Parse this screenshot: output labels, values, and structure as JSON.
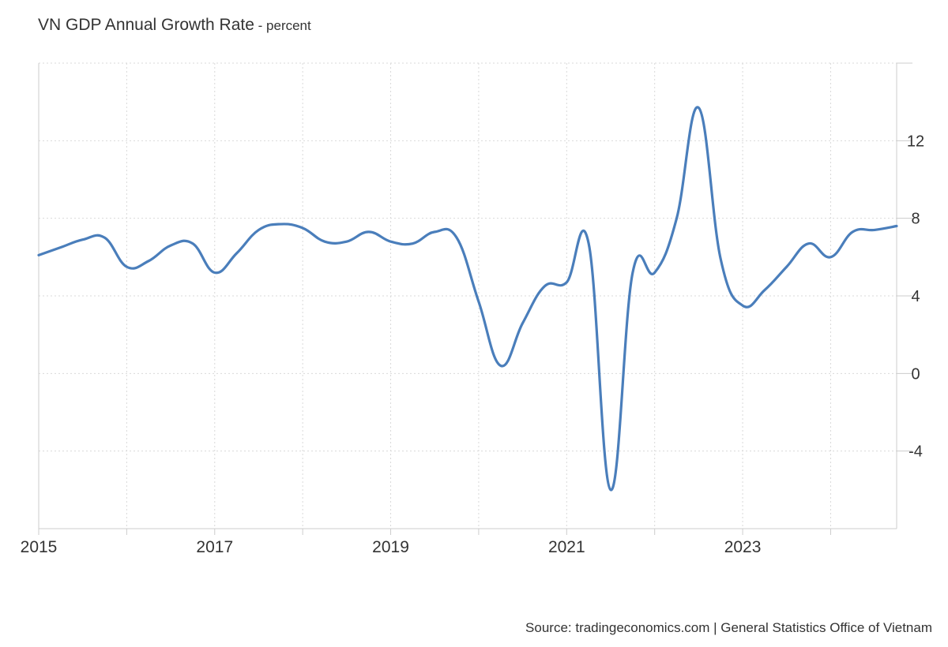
{
  "header": {
    "title": "VN GDP Annual Growth Rate",
    "unit": " - percent"
  },
  "source": "Source: tradingeconomics.com | General Statistics Office of Vietnam",
  "colors": {
    "series": "#4a7ebb",
    "grid": "#d9d9d9",
    "axis": "#cccccc",
    "text": "#333333"
  },
  "chart_data": {
    "type": "line",
    "title": "VN GDP Annual Growth Rate",
    "xlabel": "",
    "ylabel": "",
    "grid": true,
    "legend": "none",
    "y_axis_side": "right",
    "xlim": [
      "2015-01",
      "2024-10"
    ],
    "ylim": [
      -8,
      16
    ],
    "x_ticks": [
      "2015",
      "2017",
      "2019",
      "2021",
      "2023"
    ],
    "y_ticks": [
      -4,
      0,
      4,
      8,
      12
    ],
    "x_gridlines": [
      "2015",
      "2016",
      "2017",
      "2018",
      "2019",
      "2020",
      "2021",
      "2022",
      "2023",
      "2024"
    ],
    "y_gridlines": [
      -4,
      0,
      4,
      8,
      12,
      16
    ],
    "series": [
      {
        "x": [
          "2015-01",
          "2015-04",
          "2015-07",
          "2015-10",
          "2016-01",
          "2016-04",
          "2016-07",
          "2016-10",
          "2017-01",
          "2017-04",
          "2017-07",
          "2017-10",
          "2018-01",
          "2018-04",
          "2018-07",
          "2018-10",
          "2019-01",
          "2019-04",
          "2019-07",
          "2019-10",
          "2020-01",
          "2020-04",
          "2020-07",
          "2020-10",
          "2021-01",
          "2021-04",
          "2021-07",
          "2021-10",
          "2022-01",
          "2022-04",
          "2022-07",
          "2022-10",
          "2023-01",
          "2023-04",
          "2023-07",
          "2023-10",
          "2024-01",
          "2024-04",
          "2024-07",
          "2024-10"
        ],
        "values": [
          6.1,
          6.5,
          6.9,
          7.0,
          5.5,
          5.8,
          6.6,
          6.7,
          5.2,
          6.2,
          7.4,
          7.7,
          7.5,
          6.8,
          6.8,
          7.3,
          6.8,
          6.7,
          7.3,
          7.0,
          3.7,
          0.4,
          2.6,
          4.5,
          4.7,
          6.7,
          -6.0,
          5.2,
          5.2,
          8.0,
          13.7,
          5.9,
          3.5,
          4.3,
          5.5,
          6.7,
          6.0,
          7.3,
          7.4,
          7.6
        ]
      }
    ]
  }
}
